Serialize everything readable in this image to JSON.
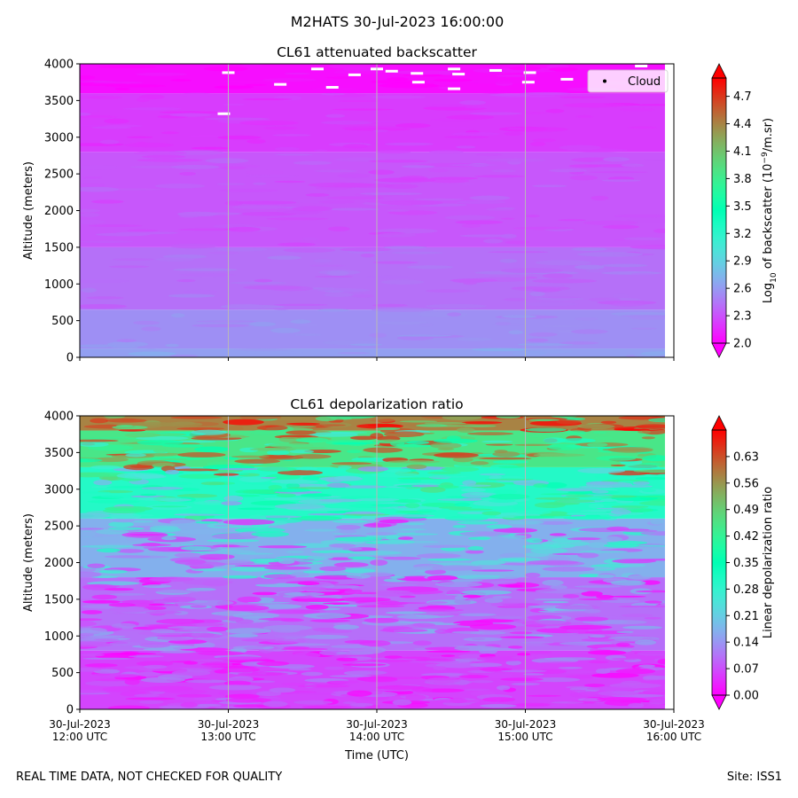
{
  "figure_title": "M2HATS 30-Jul-2023 16:00:00",
  "footer_left": "REAL TIME DATA, NOT CHECKED FOR QUALITY",
  "footer_right": "Site: ISS1",
  "chart_data": [
    {
      "type": "heatmap",
      "title": "CL61 attenuated backscatter",
      "ylabel": "Altitude (meters)",
      "ylim": [
        0,
        4000
      ],
      "yticks": [
        0,
        500,
        1000,
        1500,
        2000,
        2500,
        3000,
        3500,
        4000
      ],
      "x_time_utc_hours": [
        12,
        13,
        14,
        15,
        16
      ],
      "xticks": [],
      "legend": {
        "label": "Cloud",
        "position": "top-right"
      },
      "colorbar": {
        "label_pre": "Log",
        "label_sub": "10",
        "label_mid": " of backscatter (10",
        "label_sup": "−9",
        "label_post": "/m.sr)",
        "range": [
          2.0,
          4.9
        ],
        "ticks": [
          "2.0",
          "2.3",
          "2.6",
          "2.9",
          "3.2",
          "3.5",
          "3.8",
          "4.1",
          "4.4",
          "4.7"
        ]
      },
      "data_description_bands": [
        {
          "alt_from": 0,
          "alt_to": 120,
          "value": 2.62
        },
        {
          "alt_from": 120,
          "alt_to": 650,
          "value": 2.55
        },
        {
          "alt_from": 650,
          "alt_to": 1500,
          "value": 2.42
        },
        {
          "alt_from": 1500,
          "alt_to": 2800,
          "value": 2.32
        },
        {
          "alt_from": 2800,
          "alt_to": 3600,
          "value": 2.22
        },
        {
          "alt_from": 3600,
          "alt_to": 4000,
          "value": 2.05
        }
      ]
    },
    {
      "type": "heatmap",
      "title": "CL61 depolarization ratio",
      "ylabel": "Altitude (meters)",
      "xlabel": "Time (UTC)",
      "ylim": [
        0,
        4000
      ],
      "yticks": [
        0,
        500,
        1000,
        1500,
        2000,
        2500,
        3000,
        3500,
        4000
      ],
      "x_time_utc_hours": [
        12,
        13,
        14,
        15,
        16
      ],
      "xticks": [
        [
          "30-Jul-2023",
          "12:00 UTC"
        ],
        [
          "30-Jul-2023",
          "13:00 UTC"
        ],
        [
          "30-Jul-2023",
          "14:00 UTC"
        ],
        [
          "30-Jul-2023",
          "15:00 UTC"
        ],
        [
          "30-Jul-2023",
          "16:00 UTC"
        ]
      ],
      "colorbar": {
        "label": "Linear depolarization ratio",
        "range": [
          0.0,
          0.7
        ],
        "ticks": [
          "0.00",
          "0.07",
          "0.14",
          "0.21",
          "0.28",
          "0.35",
          "0.42",
          "0.49",
          "0.56",
          "0.63"
        ]
      },
      "data_description_bands": [
        {
          "alt_from": 0,
          "alt_to": 800,
          "value": 0.06
        },
        {
          "alt_from": 800,
          "alt_to": 1800,
          "value": 0.1
        },
        {
          "alt_from": 1800,
          "alt_to": 2600,
          "value": 0.17
        },
        {
          "alt_from": 2600,
          "alt_to": 3300,
          "value": 0.3
        },
        {
          "alt_from": 3300,
          "alt_to": 3800,
          "value": 0.45
        },
        {
          "alt_from": 3800,
          "alt_to": 4000,
          "value": 0.58
        }
      ]
    }
  ]
}
